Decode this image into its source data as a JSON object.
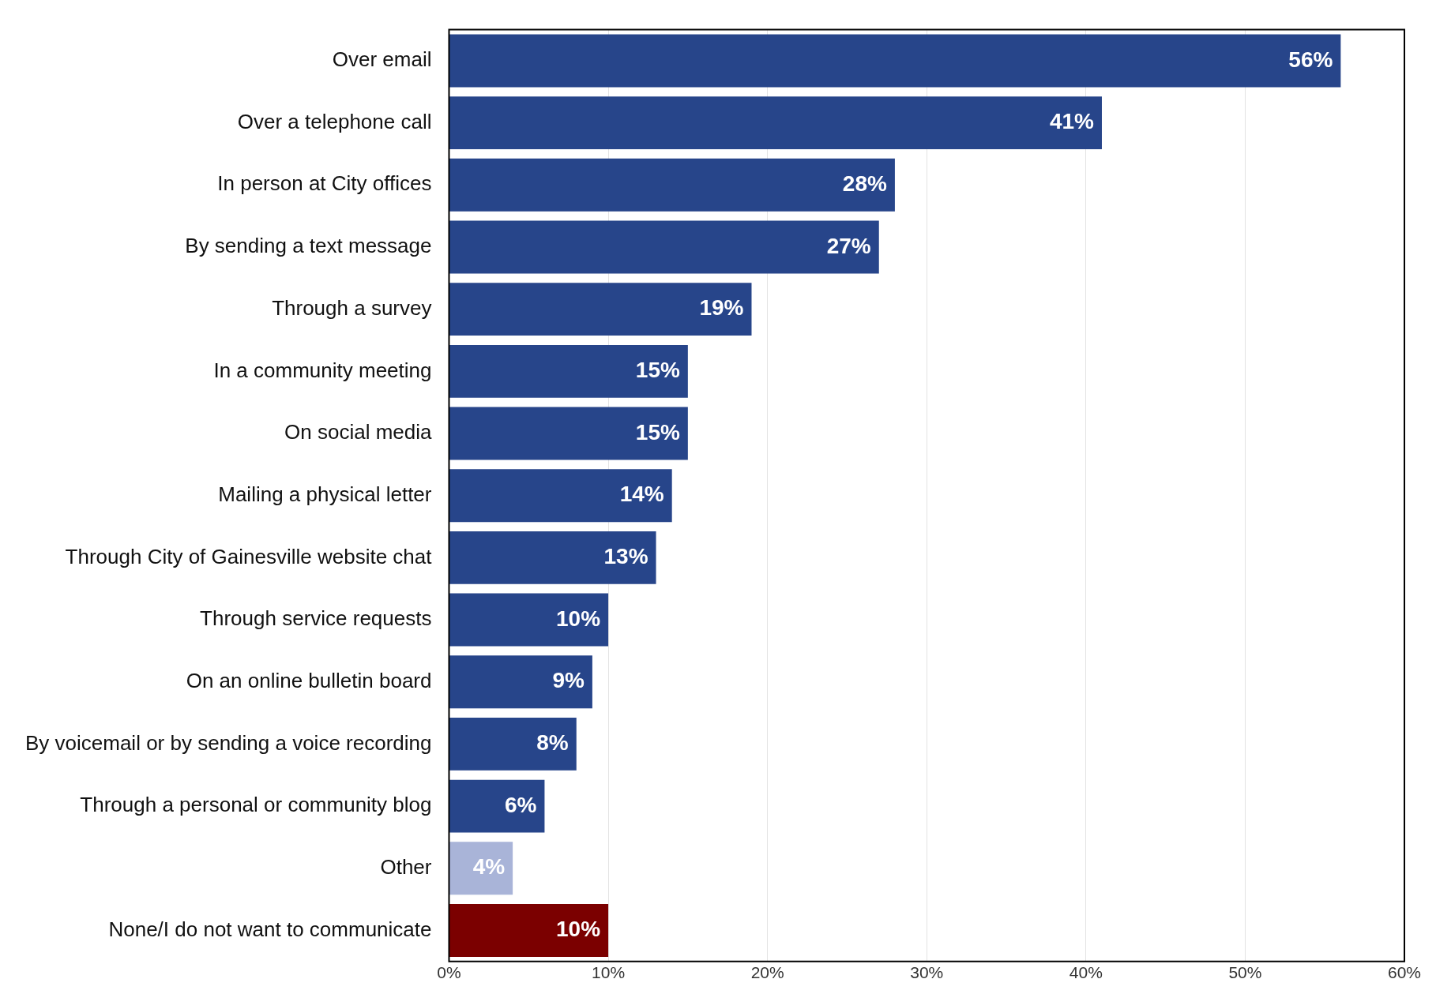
{
  "chart_data": {
    "type": "bar",
    "orientation": "horizontal",
    "categories": [
      "Over email",
      "Over a telephone call",
      "In person at City offices",
      "By sending a text message",
      "Through a survey",
      "In a community meeting",
      "On social media",
      "Mailing a physical letter",
      "Through City of Gainesville website chat",
      "Through service requests",
      "On an online bulletin board",
      "By voicemail or by sending a voice recording",
      "Through a personal or community blog",
      "Other",
      "None/I do not want to communicate"
    ],
    "values": [
      56,
      41,
      28,
      27,
      19,
      15,
      15,
      14,
      13,
      10,
      9,
      8,
      6,
      4,
      10
    ],
    "value_labels": [
      "56%",
      "41%",
      "28%",
      "27%",
      "19%",
      "15%",
      "15%",
      "14%",
      "13%",
      "10%",
      "9%",
      "8%",
      "6%",
      "4%",
      "10%"
    ],
    "colors": [
      "#27458a",
      "#27458a",
      "#27458a",
      "#27458a",
      "#27458a",
      "#27458a",
      "#27458a",
      "#27458a",
      "#27458a",
      "#27458a",
      "#27458a",
      "#27458a",
      "#27458a",
      "#a9b4d8",
      "#7b0000"
    ],
    "xlim": [
      0,
      60
    ],
    "xticks": [
      {
        "value": 0,
        "label": "0%"
      },
      {
        "value": 10,
        "label": "10%"
      },
      {
        "value": 20,
        "label": "20%"
      },
      {
        "value": 30,
        "label": "30%"
      },
      {
        "value": 40,
        "label": "40%"
      },
      {
        "value": 50,
        "label": "50%"
      },
      {
        "value": 60,
        "label": "60%"
      }
    ],
    "grid": "x",
    "legend": false
  }
}
